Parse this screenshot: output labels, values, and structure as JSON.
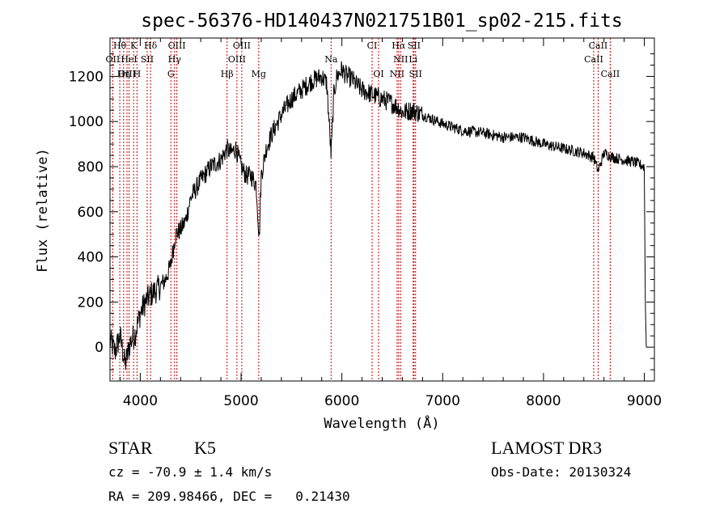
{
  "chart_data": {
    "type": "line",
    "title": "spec-56376-HD140437N021751B01_sp02-215.fits",
    "xlabel": "Wavelength (Å)",
    "ylabel": "Flux (relative)",
    "xlim": [
      3700,
      9100
    ],
    "ylim": [
      -150,
      1370
    ],
    "xticks": [
      4000,
      5000,
      6000,
      7000,
      8000,
      9000
    ],
    "yticks": [
      0,
      200,
      400,
      600,
      800,
      1000,
      1200
    ],
    "grid": false,
    "color": "#000000",
    "line_marker_color": "#cc0000",
    "series": [
      {
        "x": [
          3700,
          3750,
          3800,
          3850,
          3900,
          3950,
          4000,
          4050,
          4100,
          4150,
          4200,
          4250,
          4300,
          4350,
          4400,
          4450,
          4500,
          4600,
          4700,
          4800,
          4860,
          4900,
          4950,
          5000,
          5050,
          5100,
          5150,
          5180,
          5200,
          5250,
          5300,
          5400,
          5500,
          5600,
          5700,
          5800,
          5850,
          5893,
          5920,
          5950,
          6000,
          6050,
          6100,
          6150,
          6200,
          6300,
          6400,
          6500,
          6563,
          6600,
          6700,
          6800,
          7000,
          7200,
          7400,
          7600,
          7800,
          8000,
          8200,
          8400,
          8500,
          8542,
          8600,
          8700,
          8800,
          8900,
          9000,
          9010,
          9020
        ],
        "y": [
          30,
          -20,
          50,
          -80,
          20,
          60,
          150,
          200,
          230,
          250,
          270,
          300,
          360,
          500,
          520,
          560,
          660,
          740,
          800,
          830,
          880,
          860,
          880,
          800,
          760,
          760,
          720,
          480,
          760,
          880,
          940,
          1030,
          1100,
          1140,
          1180,
          1200,
          1170,
          850,
          1120,
          1200,
          1230,
          1200,
          1190,
          1160,
          1140,
          1120,
          1100,
          1080,
          1060,
          1040,
          1050,
          1030,
          990,
          960,
          950,
          930,
          930,
          900,
          880,
          860,
          840,
          780,
          860,
          840,
          830,
          820,
          800,
          200,
          0
        ]
      }
    ],
    "lines": [
      {
        "name": "Hθ",
        "x": 3797,
        "row": 0
      },
      {
        "name": "K",
        "x": 3934,
        "row": 0
      },
      {
        "name": "Hδ",
        "x": 4102,
        "row": 0
      },
      {
        "name": "OIII",
        "x": 4363,
        "row": 0
      },
      {
        "name": "OIII",
        "x": 5007,
        "row": 0
      },
      {
        "name": "CI",
        "x": 6300,
        "row": 0
      },
      {
        "name": "Hα",
        "x": 6563,
        "row": 0
      },
      {
        "name": "SII",
        "x": 6716,
        "row": 0
      },
      {
        "name": "CaII",
        "x": 8542,
        "row": 0
      },
      {
        "name": "OII",
        "x": 3727,
        "row": 1
      },
      {
        "name": "HeI",
        "x": 3889,
        "row": 1
      },
      {
        "name": "SII",
        "x": 4069,
        "row": 1
      },
      {
        "name": "Hγ",
        "x": 4340,
        "row": 1
      },
      {
        "name": "OIII",
        "x": 4959,
        "row": 1
      },
      {
        "name": "Na",
        "x": 5893,
        "row": 1
      },
      {
        "name": "NII",
        "x": 6583,
        "row": 1
      },
      {
        "name": "Li",
        "x": 6707,
        "row": 1
      },
      {
        "name": "CaII",
        "x": 8498,
        "row": 1
      },
      {
        "name": "OIII",
        "x": 3869,
        "row": 2
      },
      {
        "name": "Hη",
        "x": 3835,
        "row": 2
      },
      {
        "name": "H",
        "x": 3968,
        "row": 2
      },
      {
        "name": "G",
        "x": 4304,
        "row": 2
      },
      {
        "name": "Hβ",
        "x": 4861,
        "row": 2
      },
      {
        "name": "Mg",
        "x": 5175,
        "row": 2
      },
      {
        "name": "OI",
        "x": 6364,
        "row": 2
      },
      {
        "name": "NII",
        "x": 6548,
        "row": 2
      },
      {
        "name": "SII",
        "x": 6731,
        "row": 2
      },
      {
        "name": "CaII",
        "x": 8662,
        "row": 2
      }
    ]
  },
  "info": {
    "class": "STAR",
    "subclass": "K5",
    "survey": "LAMOST DR3",
    "redshift": "cz = -70.9 ± 1.4 km/s",
    "obs_date": "Obs-Date: 20130324",
    "coords": "RA = 209.98466, DEC =   0.21430"
  }
}
